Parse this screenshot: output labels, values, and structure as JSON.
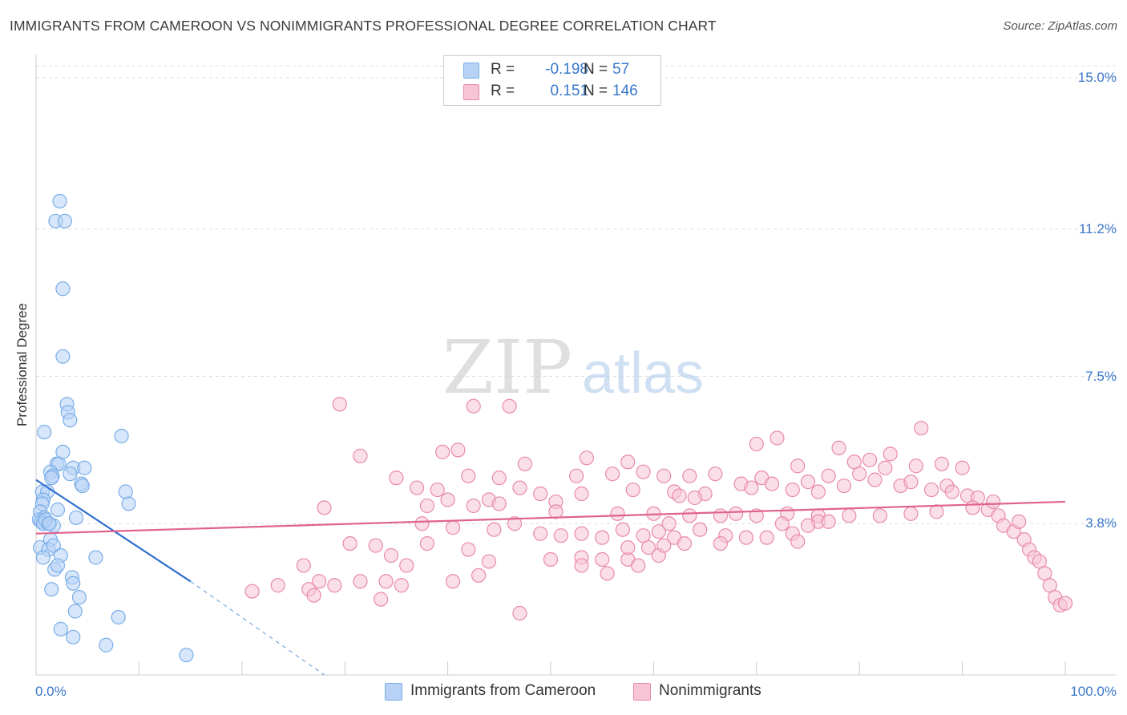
{
  "header": {
    "title": "IMMIGRANTS FROM CAMEROON VS NONIMMIGRANTS PROFESSIONAL DEGREE CORRELATION CHART",
    "source": "Source: ZipAtlas.com"
  },
  "watermark": {
    "part1": "ZIP",
    "part2": "atlas"
  },
  "legend": {
    "rows": [
      {
        "r_label": "R =",
        "r_value": "-0.198",
        "n_label": "N =",
        "n_value": "57"
      },
      {
        "r_label": "R =",
        "r_value": "0.151",
        "n_label": "N =",
        "n_value": "146"
      }
    ]
  },
  "chart_data": {
    "type": "scatter",
    "title": "IMMIGRANTS FROM CAMEROON VS NONIMMIGRANTS PROFESSIONAL DEGREE CORRELATION CHART",
    "xlabel": "",
    "ylabel": "Professional Degree",
    "xlim": [
      0,
      100
    ],
    "ylim": [
      0,
      15.5
    ],
    "x_tick_labels": [
      "0.0%",
      "100.0%"
    ],
    "y_ticks": [
      3.8,
      7.5,
      11.2,
      15.0
    ],
    "y_tick_labels": [
      "3.8%",
      "7.5%",
      "11.2%",
      "15.0%"
    ],
    "grid": true,
    "series": [
      {
        "name": "Immigrants from Cameroon",
        "color": "#7aaee8",
        "fill": "#b7d2f5",
        "R": -0.198,
        "N": 57,
        "trend": {
          "x0": 0,
          "y0": 4.9,
          "x1": 15,
          "y1": 2.35,
          "dashed_to_x": 28,
          "dashed_to_y": 0.0
        },
        "points": [
          [
            2.3,
            11.9
          ],
          [
            1.9,
            11.4
          ],
          [
            2.8,
            11.4
          ],
          [
            2.6,
            9.7
          ],
          [
            2.6,
            8.0
          ],
          [
            3.0,
            6.8
          ],
          [
            3.1,
            6.6
          ],
          [
            3.3,
            6.4
          ],
          [
            0.8,
            6.1
          ],
          [
            2.6,
            5.6
          ],
          [
            8.3,
            6.0
          ],
          [
            2.0,
            5.3
          ],
          [
            2.2,
            5.3
          ],
          [
            3.6,
            5.2
          ],
          [
            4.7,
            5.2
          ],
          [
            1.4,
            5.1
          ],
          [
            1.6,
            5.0
          ],
          [
            1.5,
            4.95
          ],
          [
            3.3,
            5.05
          ],
          [
            4.4,
            4.8
          ],
          [
            4.5,
            4.75
          ],
          [
            0.6,
            4.6
          ],
          [
            1.1,
            4.6
          ],
          [
            8.7,
            4.6
          ],
          [
            0.7,
            4.4
          ],
          [
            0.6,
            4.3
          ],
          [
            9.0,
            4.3
          ],
          [
            2.1,
            4.15
          ],
          [
            0.4,
            4.1
          ],
          [
            0.8,
            3.95
          ],
          [
            0.3,
            3.9
          ],
          [
            0.5,
            3.85
          ],
          [
            0.7,
            3.8
          ],
          [
            1.2,
            3.8
          ],
          [
            3.9,
            3.95
          ],
          [
            1.7,
            3.75
          ],
          [
            1.4,
            3.4
          ],
          [
            0.4,
            3.2
          ],
          [
            1.2,
            3.15
          ],
          [
            1.7,
            3.25
          ],
          [
            0.7,
            2.95
          ],
          [
            2.4,
            3.0
          ],
          [
            5.8,
            2.95
          ],
          [
            1.8,
            2.65
          ],
          [
            2.1,
            2.75
          ],
          [
            3.5,
            2.45
          ],
          [
            3.6,
            2.3
          ],
          [
            1.5,
            2.15
          ],
          [
            4.2,
            1.95
          ],
          [
            3.8,
            1.6
          ],
          [
            8.0,
            1.45
          ],
          [
            2.4,
            1.15
          ],
          [
            3.6,
            0.95
          ],
          [
            6.8,
            0.75
          ],
          [
            14.6,
            0.5
          ],
          [
            0.9,
            3.9
          ],
          [
            1.3,
            3.8
          ]
        ]
      },
      {
        "name": "Nonimmigrants",
        "color": "#e88aa8",
        "fill": "#f7c4d5",
        "R": 0.151,
        "N": 146,
        "trend": {
          "x0": 0,
          "y0": 3.55,
          "x1": 100,
          "y1": 4.35
        },
        "points": [
          [
            29.5,
            6.8
          ],
          [
            42.5,
            6.75
          ],
          [
            46.0,
            6.75
          ],
          [
            86.0,
            6.2
          ],
          [
            72.0,
            5.95
          ],
          [
            70.0,
            5.8
          ],
          [
            39.5,
            5.6
          ],
          [
            41.0,
            5.65
          ],
          [
            78.0,
            5.7
          ],
          [
            83.0,
            5.55
          ],
          [
            31.5,
            5.5
          ],
          [
            53.5,
            5.45
          ],
          [
            47.5,
            5.3
          ],
          [
            57.5,
            5.35
          ],
          [
            74.0,
            5.25
          ],
          [
            79.5,
            5.35
          ],
          [
            81.0,
            5.4
          ],
          [
            82.5,
            5.2
          ],
          [
            85.5,
            5.25
          ],
          [
            88.0,
            5.3
          ],
          [
            90.0,
            5.2
          ],
          [
            59.0,
            5.1
          ],
          [
            61.0,
            5.0
          ],
          [
            63.5,
            5.0
          ],
          [
            66.0,
            5.05
          ],
          [
            70.5,
            4.95
          ],
          [
            77.0,
            5.0
          ],
          [
            80.0,
            5.05
          ],
          [
            42.0,
            5.0
          ],
          [
            45.0,
            4.95
          ],
          [
            52.5,
            5.0
          ],
          [
            56.0,
            5.05
          ],
          [
            35.0,
            4.95
          ],
          [
            68.5,
            4.8
          ],
          [
            71.5,
            4.8
          ],
          [
            75.0,
            4.85
          ],
          [
            78.5,
            4.75
          ],
          [
            81.5,
            4.9
          ],
          [
            84.0,
            4.75
          ],
          [
            85.0,
            4.85
          ],
          [
            87.0,
            4.65
          ],
          [
            88.5,
            4.75
          ],
          [
            89.0,
            4.6
          ],
          [
            90.5,
            4.5
          ],
          [
            91.5,
            4.45
          ],
          [
            47.0,
            4.7
          ],
          [
            49.0,
            4.55
          ],
          [
            58.0,
            4.65
          ],
          [
            62.0,
            4.6
          ],
          [
            65.0,
            4.55
          ],
          [
            69.5,
            4.7
          ],
          [
            73.5,
            4.65
          ],
          [
            76.0,
            4.6
          ],
          [
            62.5,
            4.5
          ],
          [
            64.0,
            4.45
          ],
          [
            37.0,
            4.7
          ],
          [
            39.0,
            4.65
          ],
          [
            40.0,
            4.4
          ],
          [
            44.0,
            4.4
          ],
          [
            50.5,
            4.35
          ],
          [
            53.0,
            4.55
          ],
          [
            38.0,
            4.25
          ],
          [
            42.5,
            4.25
          ],
          [
            45.0,
            4.3
          ],
          [
            50.5,
            4.1
          ],
          [
            56.5,
            4.05
          ],
          [
            60.0,
            4.05
          ],
          [
            63.5,
            4.0
          ],
          [
            66.5,
            4.0
          ],
          [
            68.0,
            4.05
          ],
          [
            70.0,
            4.0
          ],
          [
            73.0,
            4.05
          ],
          [
            76.0,
            4.0
          ],
          [
            79.0,
            4.0
          ],
          [
            82.0,
            4.0
          ],
          [
            85.0,
            4.05
          ],
          [
            87.5,
            4.1
          ],
          [
            91.0,
            4.2
          ],
          [
            92.5,
            4.15
          ],
          [
            93.0,
            4.35
          ],
          [
            93.5,
            4.0
          ],
          [
            94.0,
            3.75
          ],
          [
            95.0,
            3.6
          ],
          [
            95.5,
            3.85
          ],
          [
            96.0,
            3.4
          ],
          [
            96.5,
            3.15
          ],
          [
            97.0,
            2.95
          ],
          [
            97.5,
            2.85
          ],
          [
            98.0,
            2.55
          ],
          [
            98.5,
            2.25
          ],
          [
            99.0,
            1.95
          ],
          [
            99.5,
            1.75
          ],
          [
            100.0,
            1.8
          ],
          [
            28.0,
            4.2
          ],
          [
            37.5,
            3.8
          ],
          [
            40.5,
            3.7
          ],
          [
            44.5,
            3.65
          ],
          [
            46.5,
            3.8
          ],
          [
            49.0,
            3.55
          ],
          [
            51.0,
            3.5
          ],
          [
            53.0,
            3.55
          ],
          [
            55.0,
            3.45
          ],
          [
            57.0,
            3.65
          ],
          [
            59.0,
            3.5
          ],
          [
            60.5,
            3.6
          ],
          [
            61.5,
            3.8
          ],
          [
            62.0,
            3.45
          ],
          [
            64.5,
            3.65
          ],
          [
            67.0,
            3.5
          ],
          [
            69.0,
            3.45
          ],
          [
            71.0,
            3.45
          ],
          [
            72.5,
            3.8
          ],
          [
            76.0,
            3.85
          ],
          [
            77.0,
            3.85
          ],
          [
            73.5,
            3.55
          ],
          [
            50.0,
            2.9
          ],
          [
            53.0,
            2.95
          ],
          [
            55.0,
            2.9
          ],
          [
            57.5,
            2.9
          ],
          [
            59.5,
            3.2
          ],
          [
            60.5,
            3.0
          ],
          [
            61.0,
            3.25
          ],
          [
            63.0,
            3.3
          ],
          [
            66.5,
            3.3
          ],
          [
            74.0,
            3.35
          ],
          [
            75.0,
            3.75
          ],
          [
            57.5,
            3.2
          ],
          [
            30.5,
            3.3
          ],
          [
            33.0,
            3.25
          ],
          [
            34.5,
            3.0
          ],
          [
            36.0,
            2.75
          ],
          [
            38.0,
            3.3
          ],
          [
            42.0,
            3.15
          ],
          [
            44.0,
            2.85
          ],
          [
            26.0,
            2.75
          ],
          [
            27.5,
            2.35
          ],
          [
            29.0,
            2.25
          ],
          [
            31.5,
            2.35
          ],
          [
            34.0,
            2.35
          ],
          [
            35.5,
            2.25
          ],
          [
            40.5,
            2.35
          ],
          [
            43.0,
            2.5
          ],
          [
            55.5,
            2.55
          ],
          [
            53.0,
            2.75
          ],
          [
            58.5,
            2.75
          ],
          [
            21.0,
            2.1
          ],
          [
            23.5,
            2.25
          ],
          [
            26.5,
            2.15
          ],
          [
            27.0,
            2.0
          ],
          [
            33.5,
            1.9
          ],
          [
            47.0,
            1.55
          ]
        ]
      }
    ]
  },
  "bottom_legend": {
    "items": [
      {
        "label": "Immigrants from Cameroon"
      },
      {
        "label": "Nonimmigrants"
      }
    ]
  }
}
